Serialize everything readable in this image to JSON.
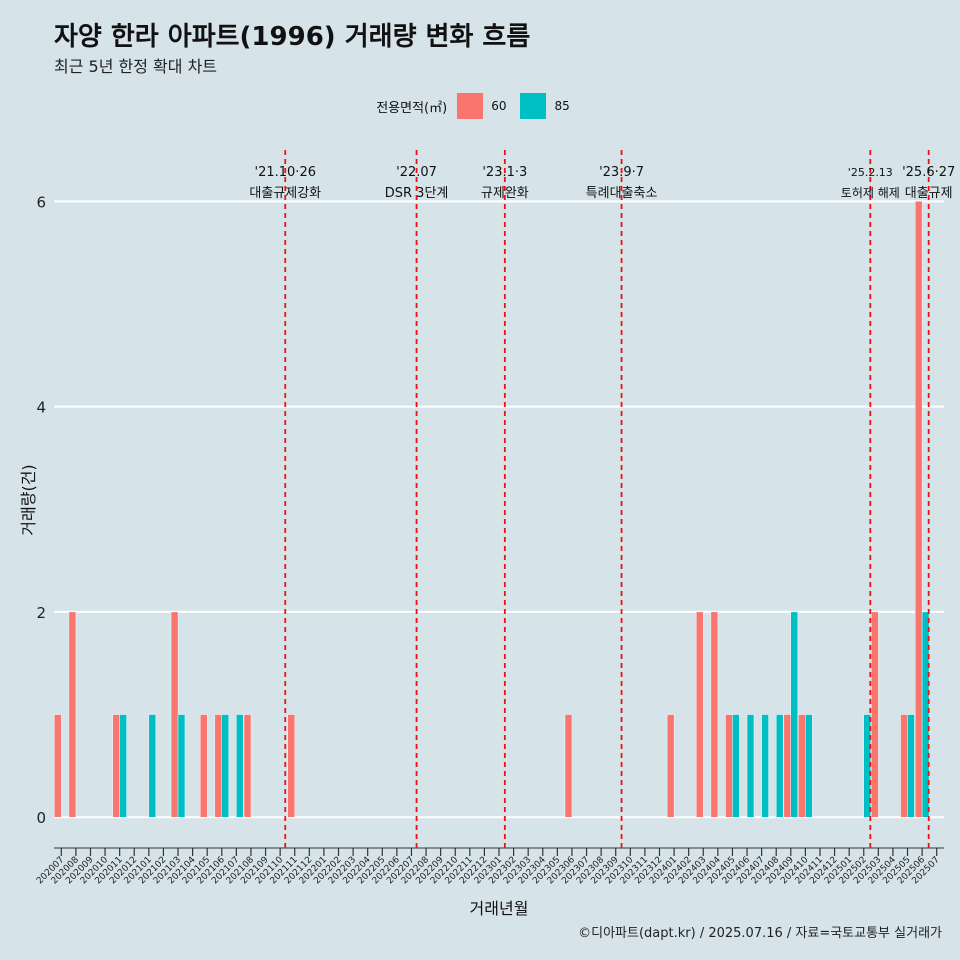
{
  "title": "자양 한라 아파트(1996) 거래량 변화 흐름",
  "subtitle": "최근 5년 한정 확대 차트",
  "caption": "©디아파트(dapt.kr) / 2025.07.16 / 자료=국토교통부 실거래가",
  "legend": {
    "title": "전용면적(㎡)",
    "items": [
      {
        "label": "60",
        "color": "#f8766d"
      },
      {
        "label": "85",
        "color": "#00bfc4"
      }
    ]
  },
  "chart_data": {
    "type": "bar",
    "xlabel": "거래년월",
    "ylabel": "거래량(건)",
    "ylim": [
      -0.3,
      6.5
    ],
    "yticks": [
      0,
      2,
      4,
      6
    ],
    "grid": "horizontal",
    "legend_position": "top",
    "categories": [
      "202007",
      "202008",
      "202009",
      "202010",
      "202011",
      "202012",
      "202101",
      "202102",
      "202103",
      "202104",
      "202105",
      "202106",
      "202107",
      "202108",
      "202109",
      "202110",
      "202111",
      "202112",
      "202201",
      "202202",
      "202203",
      "202204",
      "202205",
      "202206",
      "202207",
      "202208",
      "202209",
      "202210",
      "202211",
      "202212",
      "202301",
      "202302",
      "202303",
      "202304",
      "202305",
      "202306",
      "202307",
      "202308",
      "202309",
      "202310",
      "202311",
      "202312",
      "202401",
      "202402",
      "202403",
      "202404",
      "202405",
      "202406",
      "202407",
      "202408",
      "202409",
      "202410",
      "202411",
      "202412",
      "202501",
      "202502",
      "202503",
      "202504",
      "202505",
      "202506",
      "202507"
    ],
    "series": [
      {
        "name": "60",
        "color": "#f8766d",
        "values": [
          1,
          2,
          0,
          0,
          1,
          0,
          0,
          0,
          2,
          0,
          1,
          1,
          0,
          1,
          0,
          0,
          1,
          0,
          0,
          0,
          0,
          0,
          0,
          0,
          0,
          0,
          0,
          0,
          0,
          0,
          0,
          0,
          0,
          0,
          0,
          1,
          0,
          0,
          0,
          0,
          0,
          0,
          1,
          0,
          2,
          2,
          1,
          0,
          0,
          0,
          1,
          1,
          0,
          0,
          0,
          0,
          2,
          0,
          1,
          6,
          0
        ]
      },
      {
        "name": "85",
        "color": "#00bfc4",
        "values": [
          0,
          0,
          0,
          0,
          1,
          0,
          1,
          0,
          1,
          0,
          0,
          1,
          1,
          0,
          0,
          0,
          0,
          0,
          0,
          0,
          0,
          0,
          0,
          0,
          0,
          0,
          0,
          0,
          0,
          0,
          0,
          0,
          0,
          0,
          0,
          0,
          0,
          0,
          0,
          0,
          0,
          0,
          0,
          0,
          0,
          0,
          1,
          1,
          1,
          1,
          2,
          1,
          0,
          0,
          0,
          1,
          0,
          0,
          1,
          2,
          0
        ]
      }
    ],
    "events": [
      {
        "pos": 15.35,
        "date": "'21.10·26",
        "label": "대출규제강화"
      },
      {
        "pos": 24.35,
        "date": "'22.07",
        "label": "DSR 3단계"
      },
      {
        "pos": 30.4,
        "date": "'23.1·3",
        "label": "규제완화"
      },
      {
        "pos": 38.4,
        "date": "'23.9·7",
        "label": "특례대출축소"
      },
      {
        "pos": 55.45,
        "date": "'25.2.13",
        "label": "토허제 해제"
      },
      {
        "pos": 59.45,
        "date": "'25.6·27",
        "label": "대출규제"
      }
    ]
  }
}
